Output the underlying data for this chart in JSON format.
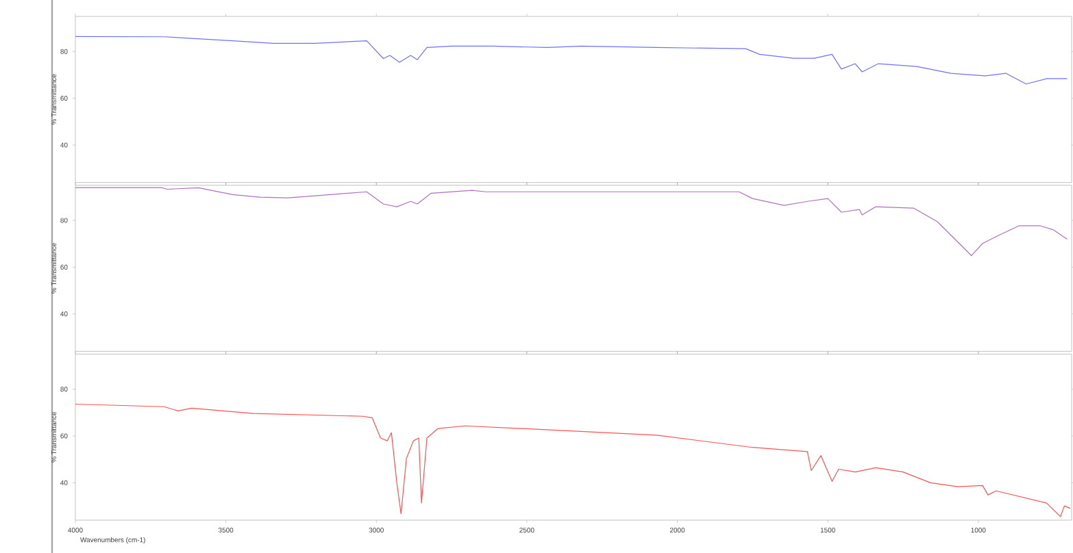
{
  "chart_data": [
    {
      "type": "line",
      "ylabel": "% Transmittance",
      "xlim": [
        4000,
        690
      ],
      "ylim": [
        24,
        95
      ],
      "xticks": [
        4000,
        3500,
        3000,
        2500,
        2000,
        1500,
        1000
      ],
      "yticks": [
        40,
        60,
        80
      ],
      "tick_labels": "y",
      "series": [
        {
          "color": "#6f6fff",
          "x": [
            4000,
            3705,
            3477,
            3341,
            3205,
            3032,
            2977,
            2955,
            2923,
            2886,
            2864,
            2832,
            2750,
            2614,
            2432,
            2318,
            2068,
            1773,
            1727,
            1614,
            1545,
            1486,
            1455,
            1409,
            1386,
            1332,
            1205,
            1091,
            977,
            909,
            841,
            773,
            705
          ],
          "values": [
            86.4,
            86.3,
            84.6,
            83.5,
            83.5,
            84.6,
            77,
            78.3,
            75.4,
            78.3,
            76.5,
            81.7,
            82.3,
            82.3,
            81.7,
            82.3,
            81.7,
            81.2,
            78.8,
            77.1,
            77.1,
            78.8,
            72.5,
            74.8,
            71.3,
            74.8,
            73.6,
            70.7,
            69.6,
            70.7,
            66.1,
            68.4,
            68.4
          ]
        }
      ]
    },
    {
      "type": "line",
      "ylabel": "% Transmittance",
      "xlim": [
        4000,
        690
      ],
      "ylim": [
        24,
        95
      ],
      "xticks": [
        4000,
        3500,
        3000,
        2500,
        2000,
        1500,
        1000
      ],
      "yticks": [
        40,
        60,
        80
      ],
      "tick_labels": "y",
      "series": [
        {
          "color": "#b070c0",
          "x": [
            4000,
            3714,
            3695,
            3591,
            3477,
            3386,
            3295,
            3182,
            3032,
            2977,
            2932,
            2886,
            2864,
            2818,
            2682,
            2636,
            2432,
            2477,
            2341,
            1795,
            1750,
            1645,
            1568,
            1500,
            1455,
            1395,
            1386,
            1341,
            1214,
            1136,
            1068,
            1023,
            986,
            932,
            864,
            795,
            750,
            705
          ],
          "values": [
            94,
            94,
            93.3,
            93.9,
            91,
            89.9,
            89.6,
            90.7,
            92.2,
            87,
            85.8,
            88.1,
            87,
            91.6,
            92.8,
            92.2,
            92.2,
            92.2,
            92.2,
            92.2,
            89.3,
            86.4,
            88.1,
            89.3,
            83.5,
            84.6,
            82.3,
            85.8,
            85.2,
            79.4,
            70.7,
            64.9,
            70.1,
            73.6,
            77.7,
            77.7,
            75.9,
            71.9
          ]
        }
      ]
    },
    {
      "type": "line",
      "ylabel": "% Transmittance",
      "xlabel": "Wavenumbers (cm-1)",
      "xlim": [
        4000,
        690
      ],
      "ylim": [
        24,
        95
      ],
      "xticks": [
        4000,
        3500,
        3000,
        2500,
        2000,
        1500,
        1000
      ],
      "yticks": [
        40,
        60,
        80
      ],
      "series": [
        {
          "color": "#ff5050",
          "x": [
            4000,
            3705,
            3659,
            3614,
            3409,
            3045,
            3014,
            2986,
            2964,
            2950,
            2932,
            2918,
            2900,
            2877,
            2859,
            2850,
            2832,
            2795,
            2705,
            2523,
            2068,
            1750,
            1568,
            1555,
            1523,
            1486,
            1464,
            1409,
            1341,
            1250,
            1159,
            1068,
            986,
            968,
            941,
            773,
            727,
            714,
            695
          ],
          "values": [
            73.6,
            72.5,
            70.7,
            71.9,
            69.6,
            68.4,
            67.8,
            59.1,
            57.9,
            61.4,
            40,
            26.7,
            50.4,
            57.9,
            59.1,
            31.3,
            59.1,
            63.2,
            64.3,
            63.2,
            60.3,
            55.1,
            53.3,
            45.2,
            51.6,
            40.6,
            45.8,
            44.6,
            46.4,
            44.6,
            40,
            38.3,
            38.8,
            34.8,
            36.5,
            31.3,
            25.5,
            30.1,
            29
          ]
        }
      ]
    }
  ]
}
